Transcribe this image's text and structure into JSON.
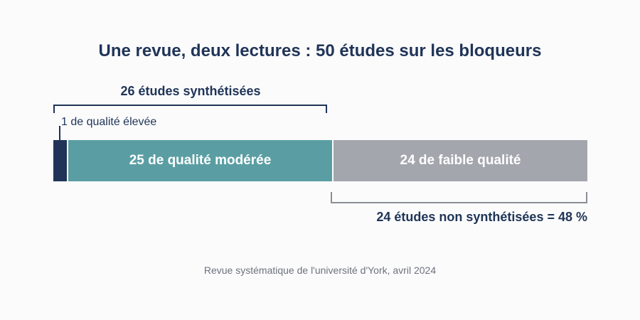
{
  "chart_data": {
    "type": "bar",
    "orientation": "horizontal",
    "stacked": true,
    "title": "Une revue, deux lectures : 50 études sur les bloqueurs",
    "total": 50,
    "segments": [
      {
        "label": "1 de qualité élevée",
        "value": 1,
        "color": "#1f3457"
      },
      {
        "label": "25 de qualité modérée",
        "value": 25,
        "color": "#5a9ea3"
      },
      {
        "label": "24 de faible qualité",
        "value": 24,
        "color": "#a3a6ad"
      }
    ],
    "annotations": {
      "synthesized": {
        "label": "26 études synthétisées",
        "value": 26
      },
      "not_synthesized": {
        "label": "24 études non synthétisées = 48 %",
        "value": 24,
        "percent": 48
      }
    },
    "source": "Revue systématique de l'université d'York, avril 2024"
  }
}
